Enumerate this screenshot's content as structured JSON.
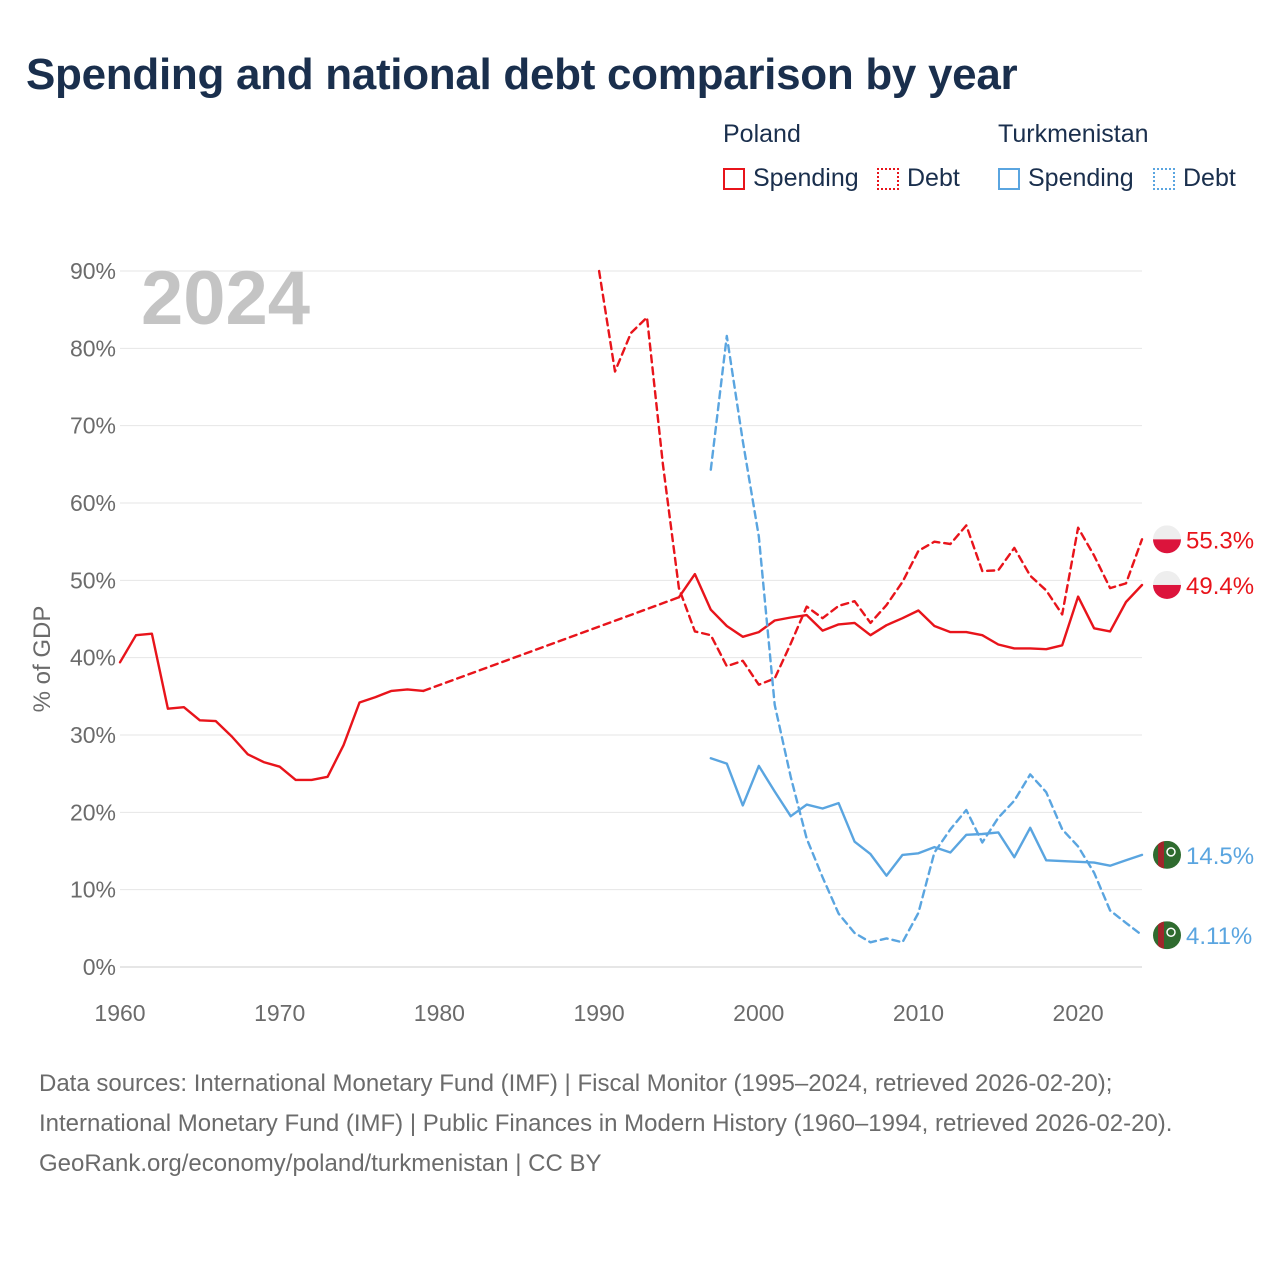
{
  "title": "Spending and national debt comparison by year",
  "legend": {
    "groups": [
      {
        "country": "Poland",
        "items": [
          {
            "label": "Spending",
            "style": "solid",
            "color": "#e8141b"
          },
          {
            "label": "Debt",
            "style": "dotted",
            "color": "#e8141b"
          }
        ]
      },
      {
        "country": "Turkmenistan",
        "items": [
          {
            "label": "Spending",
            "style": "solid",
            "color": "#5aa5e0"
          },
          {
            "label": "Debt",
            "style": "dotted",
            "color": "#5aa5e0"
          }
        ]
      }
    ]
  },
  "chart_data": {
    "type": "line",
    "year_label": "2024",
    "ylabel": "% of GDP",
    "xlim": [
      1960,
      2024
    ],
    "ylim": [
      0,
      90
    ],
    "x_ticks": [
      "1960",
      "1970",
      "1980",
      "1990",
      "2000",
      "2010",
      "2020"
    ],
    "y_ticks": [
      "0%",
      "10%",
      "20%",
      "30%",
      "40%",
      "50%",
      "60%",
      "70%",
      "80%",
      "90%"
    ],
    "grid": true,
    "series": [
      {
        "name": "Poland Spending",
        "country": "Poland",
        "metric": "Spending",
        "color": "#e8141b",
        "dash": "solid",
        "end_label": "49.4%",
        "segments": [
          {
            "dash": "solid",
            "points": [
              [
                1960,
                39.4
              ],
              [
                1961,
                42.9
              ],
              [
                1962,
                43.1
              ],
              [
                1963,
                33.4
              ],
              [
                1964,
                33.6
              ],
              [
                1965,
                31.9
              ],
              [
                1966,
                31.8
              ],
              [
                1967,
                29.8
              ],
              [
                1968,
                27.5
              ],
              [
                1969,
                26.5
              ],
              [
                1970,
                25.9
              ],
              [
                1971,
                24.2
              ],
              [
                1972,
                24.2
              ],
              [
                1973,
                24.6
              ],
              [
                1974,
                28.7
              ],
              [
                1975,
                34.2
              ],
              [
                1976,
                34.9
              ],
              [
                1977,
                35.7
              ],
              [
                1978,
                35.9
              ],
              [
                1979,
                35.7
              ]
            ]
          },
          {
            "dash": "dashed",
            "points": [
              [
                1979,
                35.7
              ],
              [
                1995,
                47.8
              ]
            ]
          },
          {
            "dash": "solid",
            "points": [
              [
                1995,
                47.8
              ],
              [
                1996,
                50.8
              ],
              [
                1997,
                46.2
              ],
              [
                1998,
                44.1
              ],
              [
                1999,
                42.7
              ],
              [
                2000,
                43.3
              ],
              [
                2001,
                44.8
              ],
              [
                2002,
                45.2
              ],
              [
                2003,
                45.5
              ],
              [
                2004,
                43.5
              ],
              [
                2005,
                44.3
              ],
              [
                2006,
                44.5
              ],
              [
                2007,
                42.9
              ],
              [
                2008,
                44.2
              ],
              [
                2009,
                45.1
              ],
              [
                2010,
                46.1
              ],
              [
                2011,
                44.1
              ],
              [
                2012,
                43.3
              ],
              [
                2013,
                43.3
              ],
              [
                2014,
                42.9
              ],
              [
                2015,
                41.7
              ],
              [
                2016,
                41.2
              ],
              [
                2017,
                41.2
              ],
              [
                2018,
                41.1
              ],
              [
                2019,
                41.6
              ],
              [
                2020,
                47.9
              ],
              [
                2021,
                43.8
              ],
              [
                2022,
                43.4
              ],
              [
                2023,
                47.2
              ],
              [
                2024,
                49.4
              ]
            ]
          }
        ]
      },
      {
        "name": "Poland Debt",
        "country": "Poland",
        "metric": "Debt",
        "color": "#e8141b",
        "dash": "dashed",
        "end_label": "55.3%",
        "segments": [
          {
            "dash": "dashed",
            "points": [
              [
                1990,
                90.0
              ],
              [
                1991,
                77.0
              ],
              [
                1992,
                82.0
              ],
              [
                1993,
                84.0
              ],
              [
                1994,
                65.0
              ],
              [
                1995,
                49.0
              ],
              [
                1996,
                43.4
              ],
              [
                1997,
                42.9
              ],
              [
                1998,
                38.9
              ],
              [
                1999,
                39.6
              ],
              [
                2000,
                36.5
              ],
              [
                2001,
                37.3
              ],
              [
                2002,
                41.8
              ],
              [
                2003,
                46.6
              ],
              [
                2004,
                45.1
              ],
              [
                2005,
                46.7
              ],
              [
                2006,
                47.3
              ],
              [
                2007,
                44.5
              ],
              [
                2008,
                46.8
              ],
              [
                2009,
                49.8
              ],
              [
                2010,
                53.8
              ],
              [
                2011,
                55.0
              ],
              [
                2012,
                54.7
              ],
              [
                2013,
                57.1
              ],
              [
                2014,
                51.2
              ],
              [
                2015,
                51.3
              ],
              [
                2016,
                54.2
              ],
              [
                2017,
                50.6
              ],
              [
                2018,
                48.7
              ],
              [
                2019,
                45.6
              ],
              [
                2020,
                56.8
              ],
              [
                2021,
                53.2
              ],
              [
                2022,
                49.0
              ],
              [
                2023,
                49.6
              ],
              [
                2024,
                55.3
              ]
            ]
          }
        ]
      },
      {
        "name": "Turkmenistan Spending",
        "country": "Turkmenistan",
        "metric": "Spending",
        "color": "#5aa5e0",
        "dash": "solid",
        "end_label": "14.5%",
        "segments": [
          {
            "dash": "solid",
            "points": [
              [
                1997,
                27.0
              ],
              [
                1998,
                26.3
              ],
              [
                1999,
                20.9
              ],
              [
                2000,
                26.0
              ],
              [
                2001,
                22.7
              ],
              [
                2002,
                19.5
              ],
              [
                2003,
                21.0
              ],
              [
                2004,
                20.5
              ],
              [
                2005,
                21.2
              ],
              [
                2006,
                16.2
              ],
              [
                2007,
                14.6
              ],
              [
                2008,
                11.8
              ],
              [
                2009,
                14.5
              ],
              [
                2010,
                14.7
              ],
              [
                2011,
                15.5
              ],
              [
                2012,
                14.8
              ],
              [
                2013,
                17.1
              ],
              [
                2014,
                17.2
              ],
              [
                2015,
                17.4
              ],
              [
                2016,
                14.2
              ],
              [
                2017,
                18.0
              ],
              [
                2018,
                13.8
              ],
              [
                2019,
                13.7
              ],
              [
                2020,
                13.6
              ],
              [
                2021,
                13.5
              ],
              [
                2022,
                13.1
              ],
              [
                2023,
                13.8
              ],
              [
                2024,
                14.5
              ]
            ]
          }
        ]
      },
      {
        "name": "Turkmenistan Debt",
        "country": "Turkmenistan",
        "metric": "Debt",
        "color": "#5aa5e0",
        "dash": "dashed",
        "end_label": "4.11%",
        "segments": [
          {
            "dash": "dashed",
            "points": [
              [
                1997,
                64.3
              ],
              [
                1998,
                81.6
              ],
              [
                1999,
                68.0
              ],
              [
                2000,
                55.7
              ],
              [
                2001,
                33.9
              ],
              [
                2002,
                24.6
              ],
              [
                2003,
                16.6
              ],
              [
                2004,
                11.6
              ],
              [
                2005,
                6.9
              ],
              [
                2006,
                4.4
              ],
              [
                2007,
                3.2
              ],
              [
                2008,
                3.7
              ],
              [
                2009,
                3.2
              ],
              [
                2010,
                7.0
              ],
              [
                2011,
                14.8
              ],
              [
                2012,
                17.8
              ],
              [
                2013,
                20.3
              ],
              [
                2014,
                16.1
              ],
              [
                2015,
                19.3
              ],
              [
                2016,
                21.5
              ],
              [
                2017,
                24.9
              ],
              [
                2018,
                22.6
              ],
              [
                2019,
                17.8
              ],
              [
                2020,
                15.6
              ],
              [
                2021,
                12.2
              ],
              [
                2022,
                7.3
              ],
              [
                2023,
                5.7
              ],
              [
                2024,
                4.11
              ]
            ]
          }
        ]
      }
    ]
  },
  "footer": {
    "sources": "Data sources: International Monetary Fund (IMF) | Fiscal Monitor (1995–2024, retrieved 2026-02-20); International Monetary Fund (IMF) | Public Finances in Modern History (1960–1994, retrieved 2026-02-20).",
    "credit": "GeoRank.org/economy/poland/turkmenistan | CC BY"
  }
}
